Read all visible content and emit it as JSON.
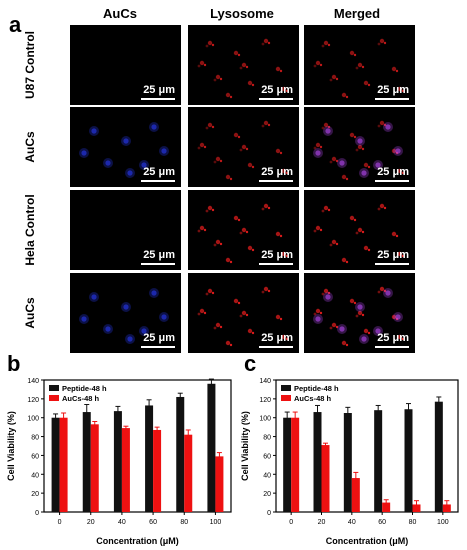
{
  "panels": {
    "a": "a",
    "b": "b",
    "c": "c"
  },
  "microscopy": {
    "columns": [
      "AuCs",
      "Lysosome",
      "Merged"
    ],
    "rows": [
      {
        "label": "U87 Control",
        "tiles": [
          "empty",
          "red",
          "red"
        ]
      },
      {
        "label": "AuCs",
        "tiles": [
          "blue",
          "red",
          "purple"
        ]
      },
      {
        "label": "Hela Control",
        "tiles": [
          "empty",
          "red",
          "red"
        ]
      },
      {
        "label": "AuCs",
        "tiles": [
          "blue",
          "red",
          "purple"
        ]
      }
    ],
    "scale_bar": "25 μm",
    "colors": {
      "red": "#ff2020",
      "blue": "#2a3cff",
      "purple": "#c04cff"
    }
  },
  "chart_data": [
    {
      "type": "bar",
      "panel": "b",
      "categories": [
        "0",
        "20",
        "40",
        "60",
        "80",
        "100"
      ],
      "series": [
        {
          "name": "Peptide-48 h",
          "color": "#111111",
          "values": [
            100,
            106,
            107,
            113,
            122,
            136
          ],
          "errors": [
            4,
            8,
            5,
            6,
            4,
            5
          ]
        },
        {
          "name": "AuCs-48 h",
          "color": "#ee1111",
          "values": [
            100,
            93,
            89,
            87,
            82,
            59
          ],
          "errors": [
            5,
            3,
            2,
            3,
            5,
            4
          ]
        }
      ],
      "xlabel": "Concentration (μM)",
      "ylabel": "Cell Viability (%)",
      "ylim": [
        0,
        140
      ],
      "yticks": [
        0,
        20,
        40,
        60,
        80,
        100,
        120,
        140
      ],
      "legend": "top-left"
    },
    {
      "type": "bar",
      "panel": "c",
      "categories": [
        "0",
        "20",
        "40",
        "60",
        "80",
        "100"
      ],
      "series": [
        {
          "name": "Peptide-48 h",
          "color": "#111111",
          "values": [
            100,
            106,
            105,
            108,
            109,
            117
          ],
          "errors": [
            6,
            7,
            6,
            5,
            6,
            5
          ]
        },
        {
          "name": "AuCs-48 h",
          "color": "#ee1111",
          "values": [
            100,
            71,
            36,
            10,
            8,
            8
          ],
          "errors": [
            6,
            2,
            6,
            3,
            4,
            4
          ]
        }
      ],
      "xlabel": "Concentration (μM)",
      "ylabel": "Cell Viability (%)",
      "ylim": [
        0,
        140
      ],
      "yticks": [
        0,
        20,
        40,
        60,
        80,
        100,
        120,
        140
      ],
      "legend": "top-left"
    }
  ]
}
